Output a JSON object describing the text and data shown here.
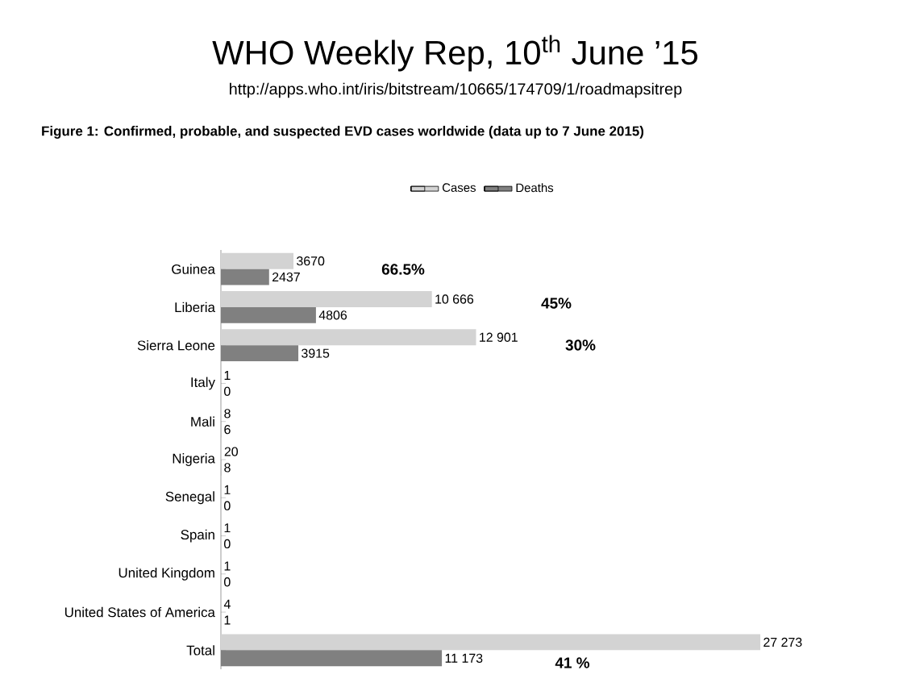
{
  "chart_data": {
    "type": "bar",
    "orientation": "horizontal",
    "title": "WHO Weekly Rep, 10$^{th}$ June ’15",
    "subtitle": "http://apps.who.int/iris/bitstream/10665/174709/1/roadmapsitrep",
    "categories": [
      "Guinea",
      "Liberia",
      "Sierra Leone",
      "Italy",
      "Mali",
      "Nigeria",
      "Senegal",
      "Spain",
      "United Kingdom",
      "United States of America",
      "Total"
    ],
    "series": [
      {
        "name": "Cases",
        "color": "#d3d3d3",
        "values": [
          3670,
          10666,
          12901,
          1,
          8,
          20,
          1,
          1,
          1,
          4,
          27273
        ],
        "value_labels": [
          "3670",
          "10 666",
          "12 901",
          "1",
          "8",
          "20",
          "1",
          "1",
          "1",
          "4",
          "27 273"
        ]
      },
      {
        "name": "Deaths",
        "color": "#808080",
        "values": [
          2437,
          4806,
          3915,
          0,
          6,
          8,
          0,
          0,
          0,
          1,
          11173
        ],
        "value_labels": [
          "2437",
          "4806",
          "3915",
          "0",
          "6",
          "8",
          "0",
          "0",
          "0",
          "1",
          "11 173"
        ]
      }
    ],
    "legend": "top",
    "annotations": [
      "Figure 1: Confirmed, probable, and suspected EVD cases worldwide (data up to 7 June 2015)",
      "66.5%",
      "45%",
      "30%",
      "41 %"
    ]
  }
}
